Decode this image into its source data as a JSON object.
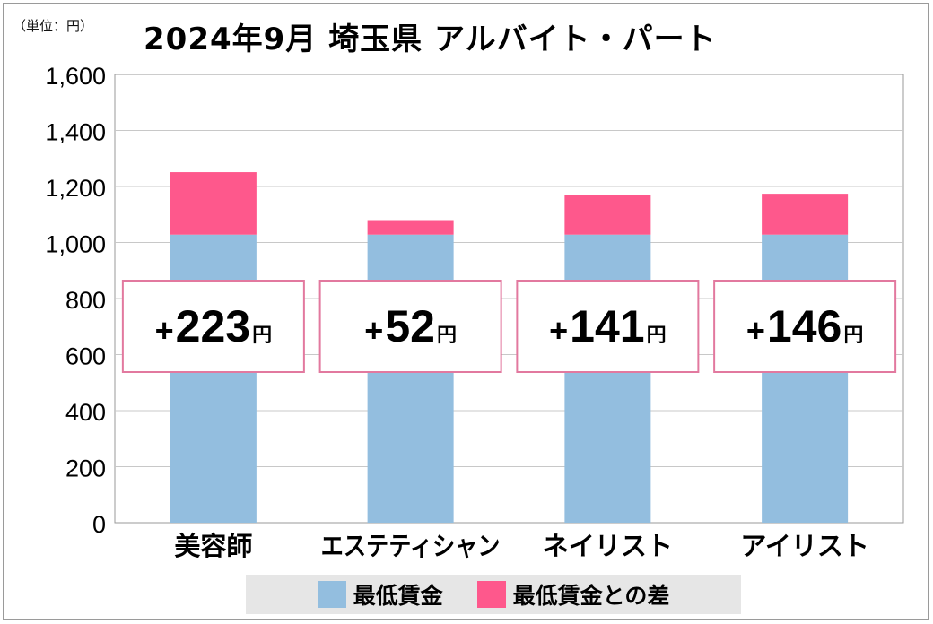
{
  "unit_label": "（単位：円）",
  "title": "2024年9月 埼玉県 アルバイト・パート",
  "colors": {
    "base": "#93bedf",
    "diff": "#fe588c",
    "grid": "#c8c8c8",
    "box_border": "#e2799f"
  },
  "chart_data": {
    "type": "bar",
    "stacked": true,
    "title": "2024年9月 埼玉県 アルバイト・パート",
    "unit": "円",
    "categories": [
      "美容師",
      "エステティシャン",
      "ネイリスト",
      "アイリスト"
    ],
    "series": [
      {
        "name": "最低賃金",
        "values": [
          1028,
          1028,
          1028,
          1028
        ]
      },
      {
        "name": "最低賃金との差",
        "values": [
          223,
          52,
          141,
          146
        ]
      }
    ],
    "annotations": [
      {
        "sign": "+",
        "number": "223",
        "unit": "円"
      },
      {
        "sign": "+",
        "number": "52",
        "unit": "円"
      },
      {
        "sign": "+",
        "number": "141",
        "unit": "円"
      },
      {
        "sign": "+",
        "number": "146",
        "unit": "円"
      }
    ],
    "yticks": [
      "0",
      "200",
      "400",
      "600",
      "800",
      "1,000",
      "1,200",
      "1,400",
      "1,600"
    ],
    "ylim": [
      0,
      1600
    ],
    "grid": true,
    "legend_position": "bottom"
  },
  "legend": [
    {
      "label": "最低賃金"
    },
    {
      "label": "最低賃金との差"
    }
  ]
}
